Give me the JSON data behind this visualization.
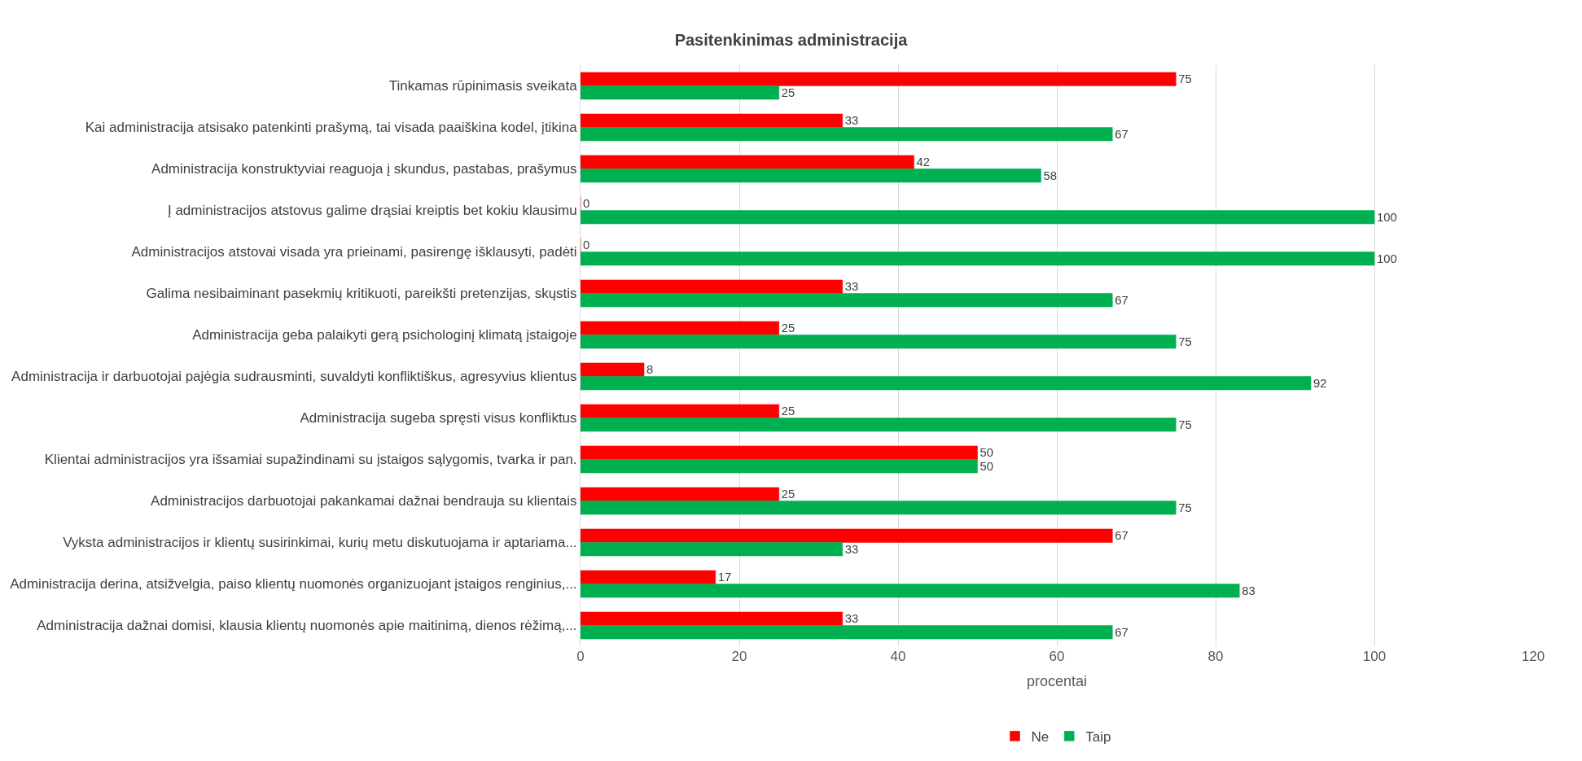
{
  "chart_data": {
    "type": "bar",
    "orientation": "horizontal",
    "title": "Pasitenkinimas administracija",
    "xlabel": "procentai",
    "categories": [
      "Tinkamas rūpinimasis sveikata",
      "Kai administracija atsisako patenkinti prašymą, tai visada paaiškina kodel, įtikina",
      "Administracija konstruktyviai reaguoja į skundus, pastabas, prašymus",
      "Į administracijos atstovus galime drąsiai kreiptis bet kokiu klausimu",
      "Administracijos atstovai visada yra prieinami, pasirengę išklausyti, padėti",
      "Galima nesibaiminant pasekmių kritikuoti, pareikšti pretenzijas, skųstis",
      "Administracija geba palaikyti gerą psichologinį klimatą įstaigoje",
      "Administracija ir darbuotojai pajėgia sudrausminti, suvaldyti konfliktiškus, agresyvius klientus",
      "Administracija sugeba spręsti visus konfliktus",
      "Klientai administracijos yra išsamiai supažindinami su įstaigos sąlygomis, tvarka ir pan.",
      "Administracijos darbuotojai pakankamai dažnai bendrauja su klientais",
      "Vyksta administracijos ir klientų susirinkimai, kurių metu diskutuojama ir aptariama...",
      "Administracija derina, atsižvelgia, paiso klientų nuomonės organizuojant įstaigos renginius,...",
      "Administracija dažnai domisi, klausia klientų nuomonės apie maitinimą, dienos rėžimą,..."
    ],
    "series": [
      {
        "name": "Ne",
        "color": "#ff0000",
        "values": [
          75,
          33,
          42,
          0,
          0,
          33,
          25,
          8,
          25,
          50,
          25,
          67,
          17,
          33
        ]
      },
      {
        "name": "Taip",
        "color": "#00b050",
        "values": [
          25,
          67,
          58,
          100,
          100,
          67,
          75,
          92,
          75,
          50,
          75,
          33,
          83,
          67
        ]
      }
    ],
    "xlim": [
      0,
      120
    ],
    "xticks": [
      0,
      20,
      40,
      60,
      80,
      100,
      120
    ],
    "grid": "x",
    "legend": "bottom",
    "data_labels": true
  }
}
